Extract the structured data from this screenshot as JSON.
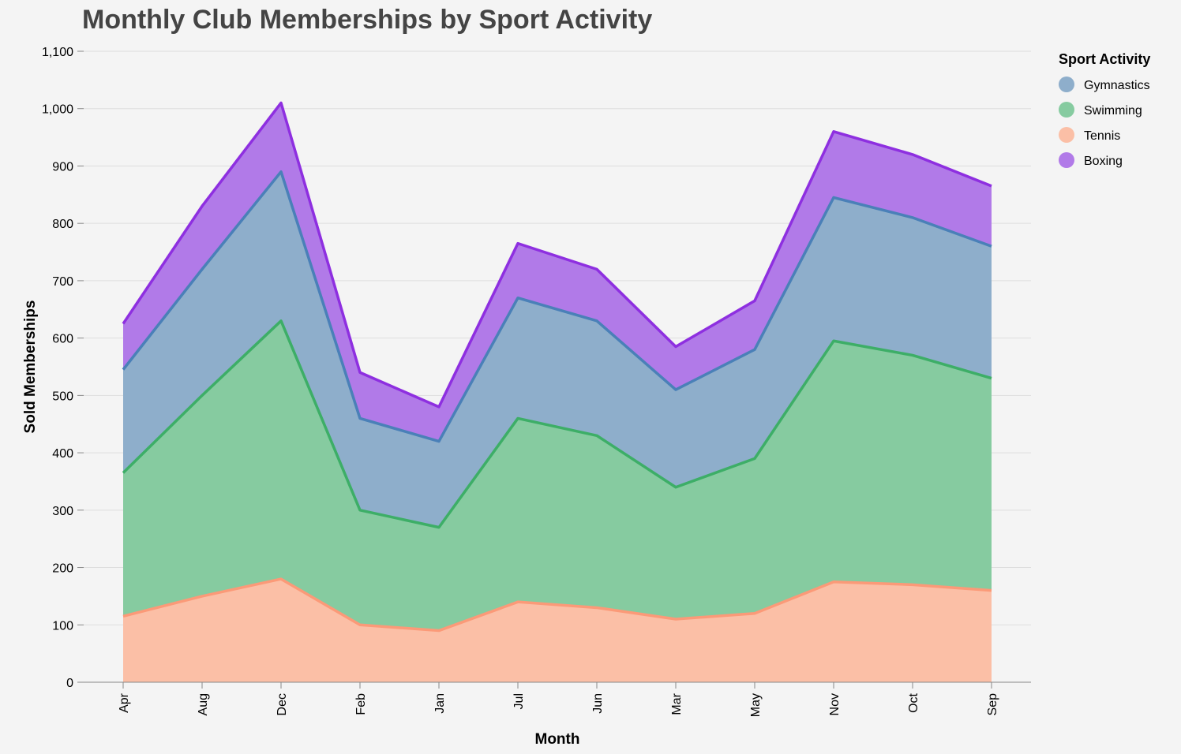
{
  "chart_data": {
    "type": "area",
    "stacked": true,
    "title": "Monthly Club Memberships by Sport Activity",
    "xlabel": "Month",
    "ylabel": "Sold Memberships",
    "categories": [
      "Apr",
      "Aug",
      "Dec",
      "Feb",
      "Jan",
      "Jul",
      "Jun",
      "Mar",
      "May",
      "Nov",
      "Oct",
      "Sep"
    ],
    "ylim": [
      0,
      1100
    ],
    "yticks": [
      0,
      100,
      200,
      300,
      400,
      500,
      600,
      700,
      800,
      900,
      1000,
      1100
    ],
    "ytick_labels": [
      "0",
      "100",
      "200",
      "300",
      "400",
      "500",
      "600",
      "700",
      "800",
      "900",
      "1,000",
      "1,100"
    ],
    "grid": true,
    "legend": {
      "title": "Sport Activity",
      "placement": "top-right",
      "order": [
        "Gymnastics",
        "Swimming",
        "Tennis",
        "Boxing"
      ]
    },
    "series": [
      {
        "name": "Tennis",
        "fill": "#fbbfa6",
        "stroke": "#fb9a78",
        "values": [
          115,
          150,
          180,
          100,
          90,
          140,
          130,
          110,
          120,
          175,
          170,
          160
        ]
      },
      {
        "name": "Swimming",
        "fill": "#86cba0",
        "stroke": "#3dae67",
        "values": [
          250,
          350,
          450,
          200,
          180,
          320,
          300,
          230,
          270,
          420,
          400,
          370
        ]
      },
      {
        "name": "Gymnastics",
        "fill": "#8eaecb",
        "stroke": "#4a80b8",
        "values": [
          180,
          220,
          260,
          160,
          150,
          210,
          200,
          170,
          190,
          250,
          240,
          230
        ]
      },
      {
        "name": "Boxing",
        "fill": "#b17ae8",
        "stroke": "#8e2fe0",
        "values": [
          80,
          110,
          120,
          80,
          60,
          95,
          90,
          75,
          85,
          115,
          110,
          105
        ]
      }
    ]
  }
}
